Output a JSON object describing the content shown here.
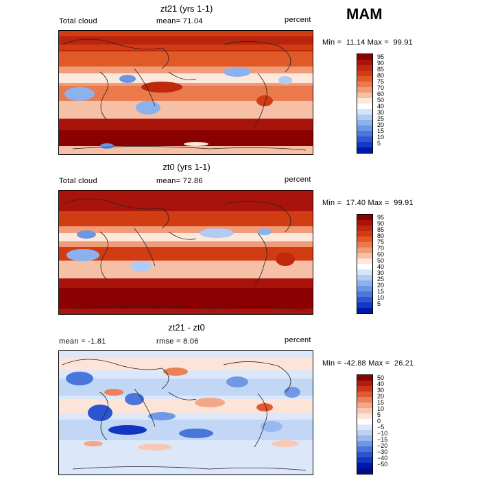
{
  "season": "MAM",
  "panels": [
    {
      "title": "zt21 (yrs 1-1)",
      "left_label": "Total cloud",
      "stat": "mean=  71.04",
      "units": "percent",
      "minmax": "Min =  11.14 Max =  99.91",
      "scale": {
        "colors": [
          "#8b0000",
          "#a8140c",
          "#c0280e",
          "#d23c12",
          "#e05a28",
          "#ea7a4c",
          "#f09c78",
          "#f6c0a6",
          "#fde8dc",
          "#ffffff",
          "#d6e6fa",
          "#b0ccf4",
          "#8cb2ee",
          "#6a96e6",
          "#4a78dc",
          "#2c58d2",
          "#1538c4",
          "#001aa8"
        ],
        "ticks": [
          "95",
          "90",
          "85",
          "80",
          "75",
          "70",
          "60",
          "50",
          "40",
          "30",
          "25",
          "20",
          "15",
          "10",
          "5"
        ]
      }
    },
    {
      "title": "zt0 (yrs 1-1)",
      "left_label": "Total cloud",
      "stat": "mean=  72.86",
      "units": "percent",
      "minmax": "Min =  17.40 Max =  99.91",
      "scale": {
        "colors": [
          "#8b0000",
          "#a8140c",
          "#c0280e",
          "#d23c12",
          "#e05a28",
          "#ea7a4c",
          "#f09c78",
          "#f6c0a6",
          "#fde8dc",
          "#ffffff",
          "#d6e6fa",
          "#b0ccf4",
          "#8cb2ee",
          "#6a96e6",
          "#4a78dc",
          "#2c58d2",
          "#1538c4",
          "#001aa8"
        ],
        "ticks": [
          "95",
          "90",
          "85",
          "80",
          "75",
          "70",
          "60",
          "50",
          "40",
          "30",
          "25",
          "20",
          "15",
          "10",
          "5"
        ]
      }
    },
    {
      "title": "zt21 - zt0",
      "left_label": "mean =  -1.81",
      "stat": "rmse =   8.06",
      "units": "percent",
      "minmax": "Min = -42.88 Max =  26.21",
      "scale": {
        "colors": [
          "#8b0000",
          "#b01a10",
          "#cc3618",
          "#e05a30",
          "#ec8058",
          "#f4a688",
          "#f9c8b4",
          "#fde4d8",
          "#ffffff",
          "#dce8fa",
          "#bcd2f4",
          "#98b8ee",
          "#7098e6",
          "#4a76dc",
          "#2a54d0",
          "#1236c0",
          "#0018a8",
          "#000c90"
        ],
        "ticks": [
          "50",
          "40",
          "30",
          "20",
          "15",
          "10",
          "5",
          "0",
          "−5",
          "−10",
          "−15",
          "−20",
          "−30",
          "−40",
          "−50"
        ]
      }
    }
  ]
}
